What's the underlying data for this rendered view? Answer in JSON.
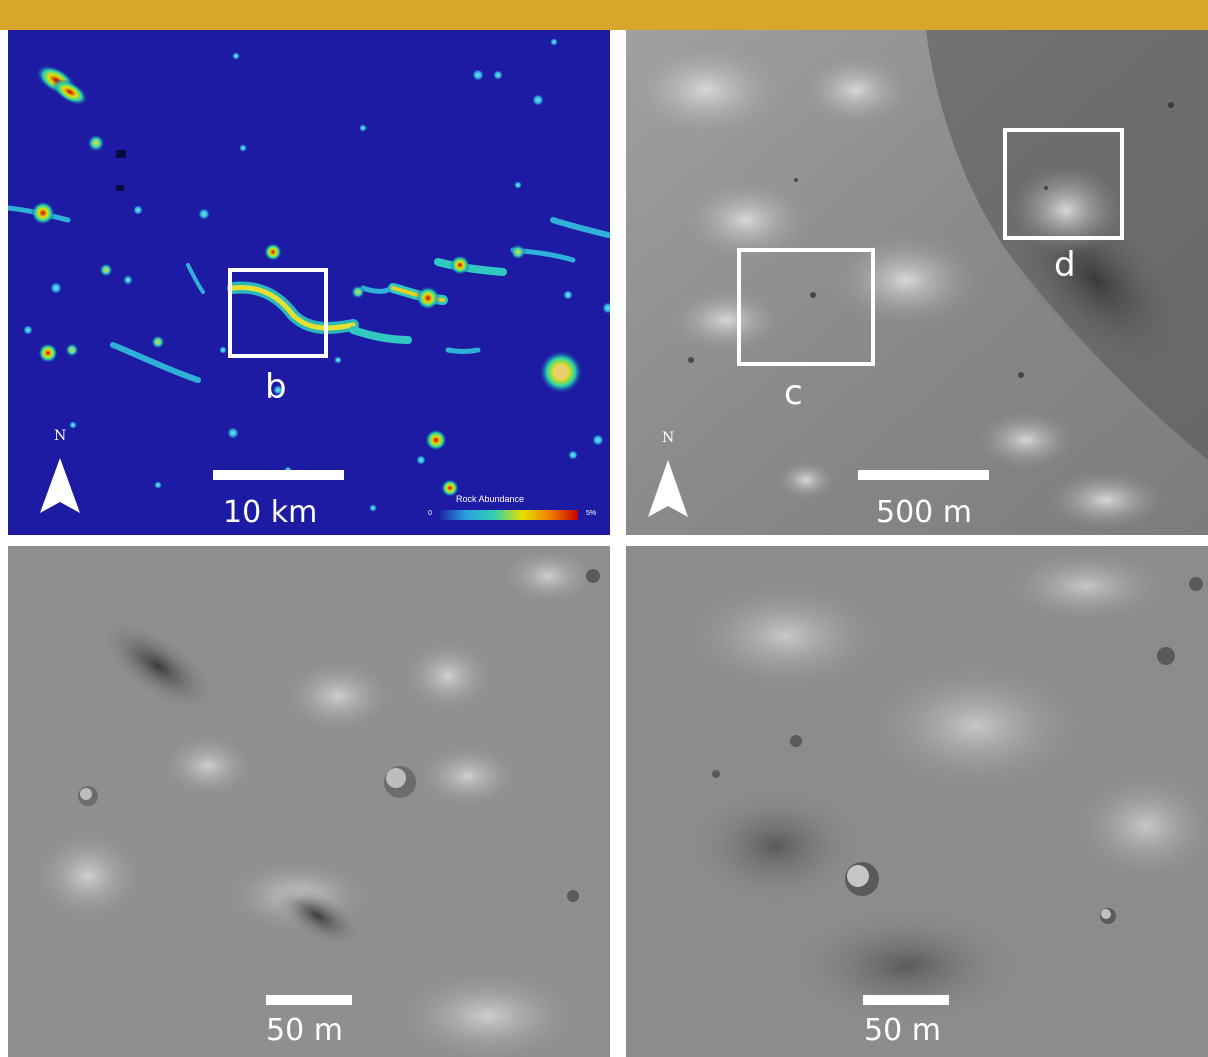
{
  "colors": {
    "accent_bar": "#d7a62a",
    "map_background": "#1d1aa3",
    "overlay_white": "#ffffff"
  },
  "panel_a": {
    "label": "b",
    "north": "N",
    "scale_label": "10 km",
    "legend": {
      "title": "Rock Abundance",
      "min": "0",
      "max": "5%"
    }
  },
  "panel_b": {
    "labels": [
      "c",
      "d"
    ],
    "north": "N",
    "scale_label": "500 m"
  },
  "panel_c": {
    "scale_label": "50 m"
  },
  "panel_d": {
    "scale_label": "50 m"
  },
  "icons": [
    "north-arrow-icon"
  ]
}
